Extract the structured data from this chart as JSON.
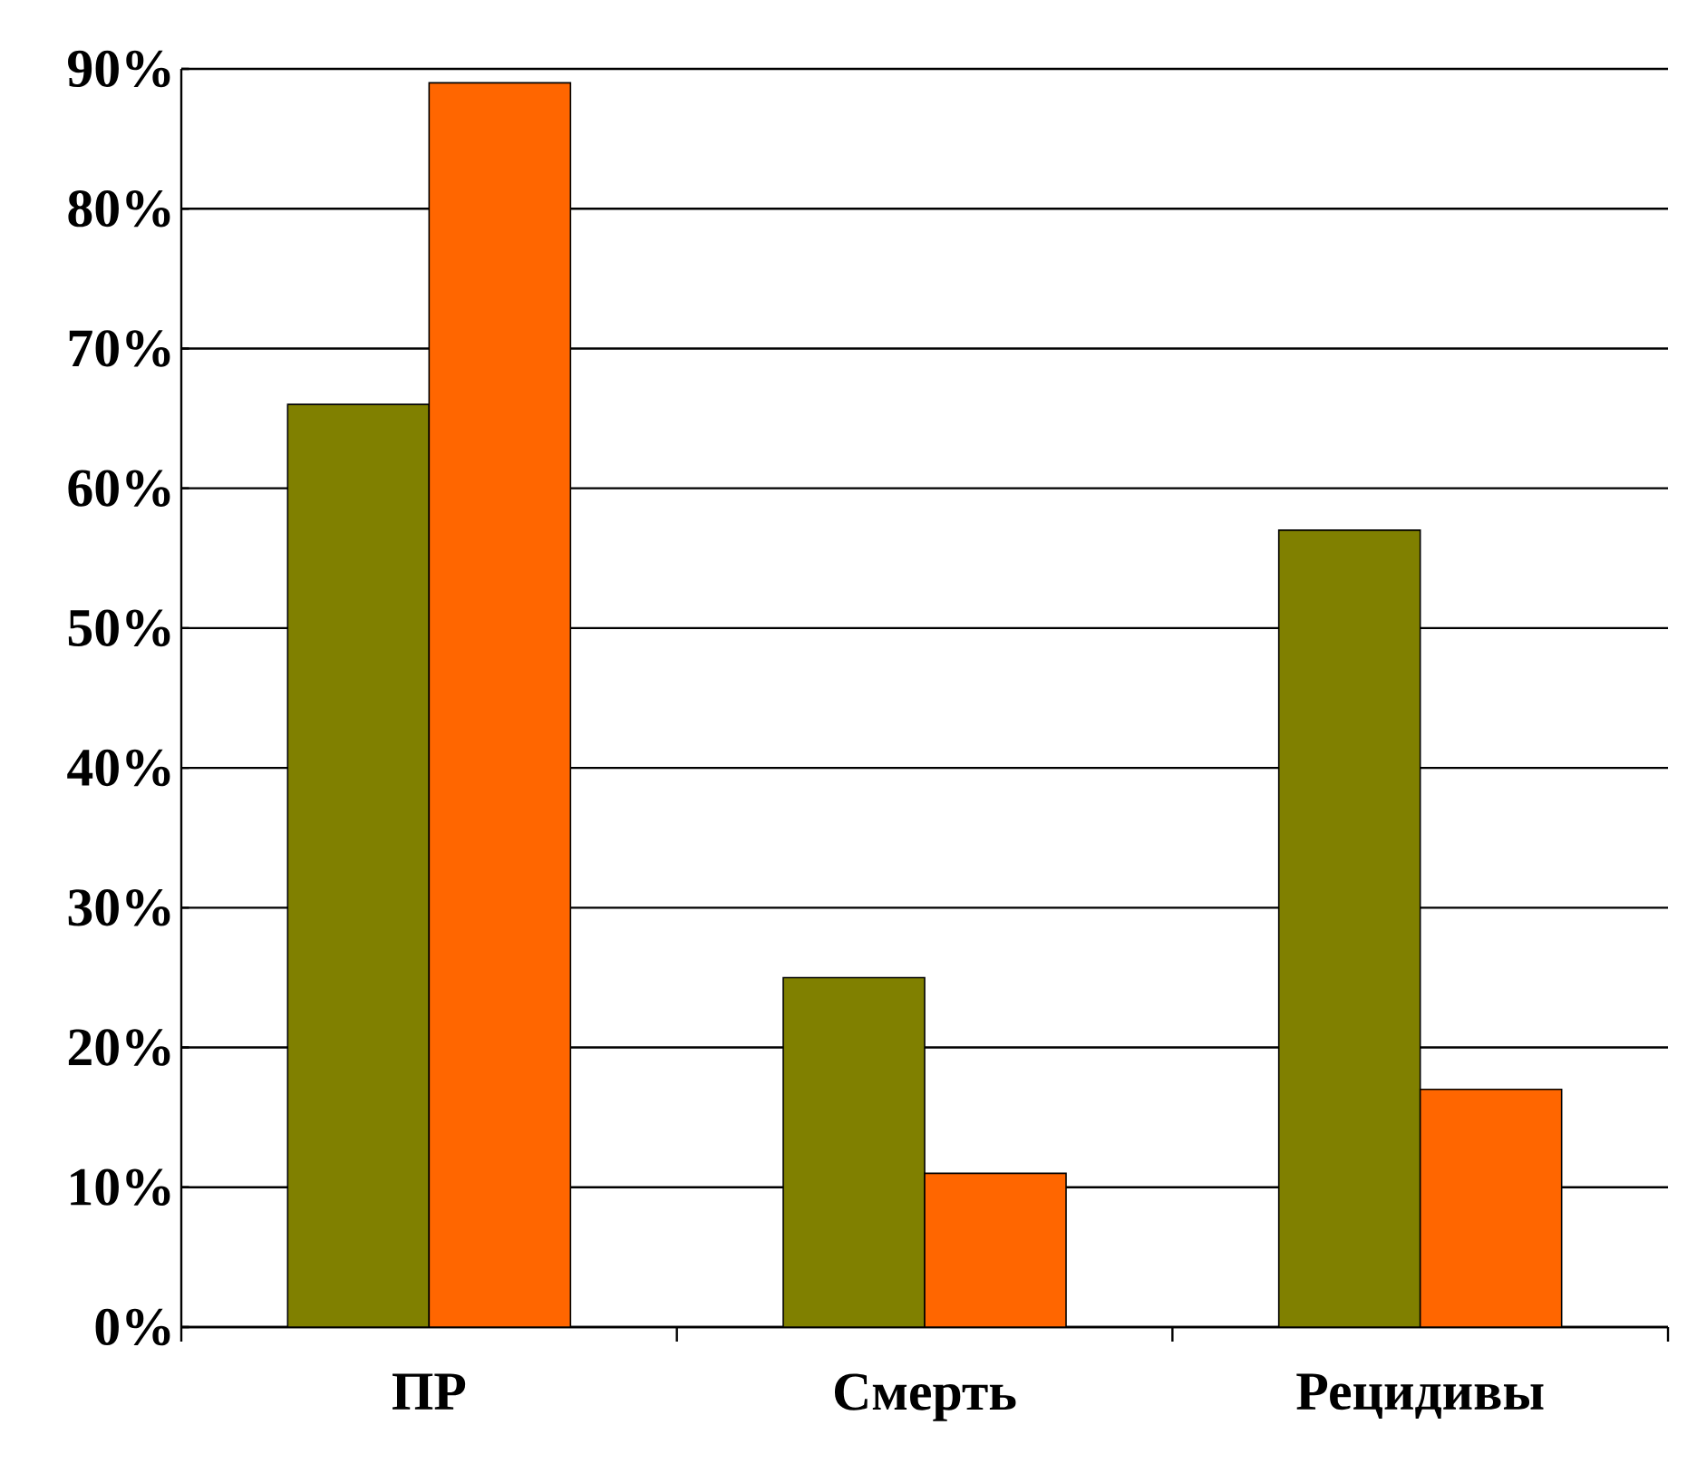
{
  "chart_data": {
    "type": "bar",
    "categories": [
      "ПР",
      "Смерть",
      "Рецидивы"
    ],
    "series": [
      {
        "color": "#808000",
        "values": [
          66,
          25,
          57
        ]
      },
      {
        "color": "#ff6600",
        "values": [
          89,
          11,
          17
        ]
      }
    ],
    "ylim": [
      0,
      90
    ],
    "yticks": [
      {
        "value": 0,
        "label": "0%"
      },
      {
        "value": 10,
        "label": "10%"
      },
      {
        "value": 20,
        "label": "20%"
      },
      {
        "value": 30,
        "label": "30%"
      },
      {
        "value": 40,
        "label": "40%"
      },
      {
        "value": 50,
        "label": "50%"
      },
      {
        "value": 60,
        "label": "60%"
      },
      {
        "value": 70,
        "label": "70%"
      },
      {
        "value": 80,
        "label": "80%"
      },
      {
        "value": 90,
        "label": "90%"
      }
    ],
    "grid": "y"
  }
}
